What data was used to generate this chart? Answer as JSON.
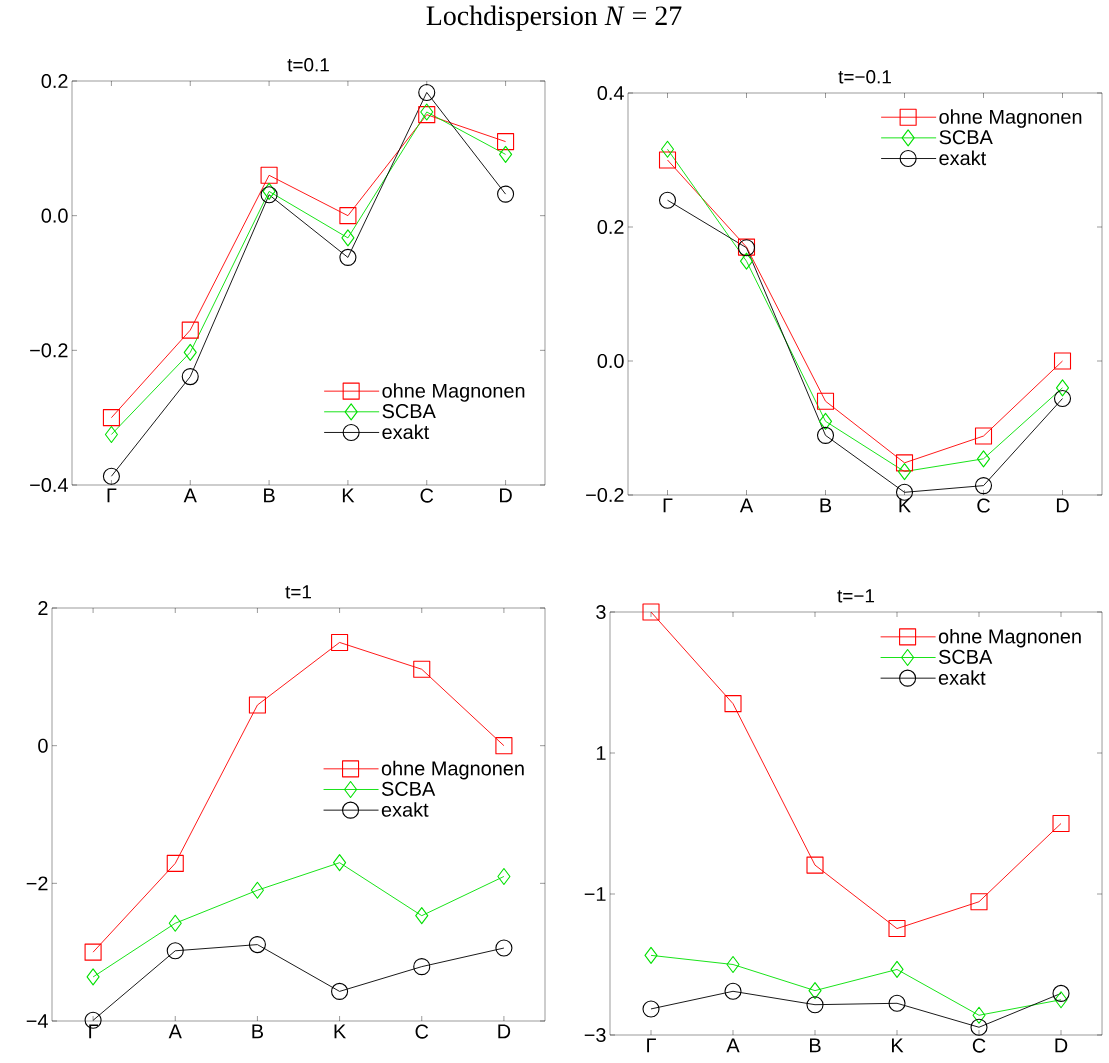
{
  "chart_data": [
    {
      "type": "line",
      "title": "t=0.1",
      "annotations": [
        "Lochdispersion *N* = 27"
      ],
      "categories": [
        "Γ",
        "A",
        "B",
        "K",
        "C",
        "D"
      ],
      "ylim": [
        -0.4,
        0.2
      ],
      "yticks": [
        {
          "value": -0.4,
          "label": "−0.4"
        },
        {
          "value": -0.2,
          "label": "−0.2"
        },
        {
          "value": 0,
          "label": "0.0"
        },
        0.2
      ],
      "legend": "bottom right",
      "line_style": "solid",
      "series": [
        {
          "name": "ohne Magnonen",
          "color": "#ff0000",
          "marker": "square",
          "values": [
            -0.3,
            -0.17,
            0.06,
            0.0,
            0.15,
            0.11
          ]
        },
        {
          "name": "SCBA",
          "color": "#00e000",
          "marker": "diamond",
          "values": [
            -0.325,
            -0.203,
            0.036,
            -0.033,
            0.154,
            0.091
          ]
        },
        {
          "name": "exakt",
          "color": "#000000",
          "marker": "circle",
          "values": [
            -0.387,
            -0.239,
            0.031,
            -0.062,
            0.183,
            0.032
          ]
        }
      ]
    },
    {
      "type": "line",
      "title": "t=−0.1",
      "categories": [
        "Γ",
        "A",
        "B",
        "K",
        "C",
        "D"
      ],
      "ylim": [
        -0.2,
        0.4
      ],
      "yticks": [
        {
          "value": -0.2,
          "label": "−0.2"
        },
        {
          "value": 0,
          "label": "0.0"
        },
        0.2,
        0.4
      ],
      "legend": "top right",
      "line_style": "solid",
      "series": [
        {
          "name": "ohne Magnonen",
          "color": "#ff0000",
          "marker": "square",
          "values": [
            0.3,
            0.17,
            -0.06,
            -0.152,
            -0.112,
            0.0
          ]
        },
        {
          "name": "SCBA",
          "color": "#00e000",
          "marker": "diamond",
          "values": [
            0.316,
            0.149,
            -0.09,
            -0.165,
            -0.146,
            -0.04
          ]
        },
        {
          "name": "exakt",
          "color": "#000000",
          "marker": "circle",
          "values": [
            0.24,
            0.169,
            -0.111,
            -0.196,
            -0.186,
            -0.056
          ]
        }
      ]
    },
    {
      "type": "line",
      "title": "t=1",
      "categories": [
        "Γ",
        "A",
        "B",
        "K",
        "C",
        "D"
      ],
      "ylim": [
        -4,
        2
      ],
      "yticks": [
        {
          "value": -4,
          "label": "−4"
        },
        {
          "value": -2,
          "label": "−2"
        },
        0,
        2
      ],
      "legend": "right",
      "line_style": "solid",
      "series": [
        {
          "name": "ohne Magnonen",
          "color": "#ff0000",
          "marker": "square",
          "values": [
            -3.0,
            -1.71,
            0.59,
            1.5,
            1.11,
            0.0
          ]
        },
        {
          "name": "SCBA",
          "color": "#00e000",
          "marker": "diamond",
          "values": [
            -3.36,
            -2.58,
            -2.1,
            -1.7,
            -2.47,
            -1.9
          ]
        },
        {
          "name": "exakt",
          "color": "#000000",
          "marker": "circle",
          "values": [
            -3.99,
            -2.98,
            -2.89,
            -3.57,
            -3.21,
            -2.94
          ]
        }
      ]
    },
    {
      "type": "line",
      "title": "t=−1",
      "categories": [
        "Γ",
        "A",
        "B",
        "K",
        "C",
        "D"
      ],
      "ylim": [
        -3,
        3
      ],
      "yticks": [
        {
          "value": -3,
          "label": "−3"
        },
        {
          "value": -1,
          "label": "−1"
        },
        1,
        3
      ],
      "legend": "top right",
      "line_style": "solid",
      "series": [
        {
          "name": "ohne Magnonen",
          "color": "#ff0000",
          "marker": "square",
          "values": [
            3.0,
            1.7,
            -0.59,
            -1.49,
            -1.11,
            0.0
          ]
        },
        {
          "name": "SCBA",
          "color": "#00e000",
          "marker": "diamond",
          "values": [
            -1.87,
            -2.0,
            -2.37,
            -2.07,
            -2.72,
            -2.5
          ]
        },
        {
          "name": "exakt",
          "color": "#000000",
          "marker": "circle",
          "values": [
            -2.63,
            -2.38,
            -2.57,
            -2.55,
            -2.89,
            -2.41
          ]
        }
      ]
    }
  ]
}
